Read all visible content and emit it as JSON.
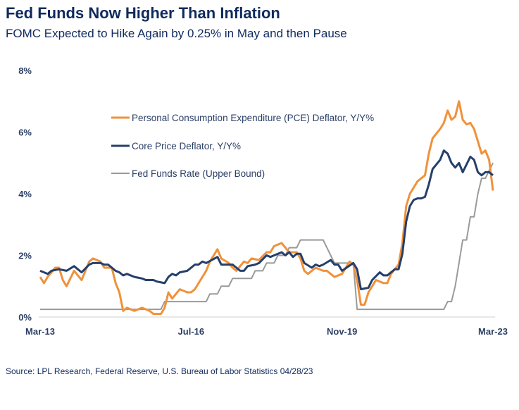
{
  "header": {
    "title": "Fed Funds Now Higher Than Inflation",
    "subtitle": "FOMC Expected to Hike Again by 0.25% in May and then Pause"
  },
  "footer": {
    "source": "Source: LPL Research, Federal Reserve, U.S. Bureau of Labor Statistics 04/28/23"
  },
  "chart_data": {
    "type": "line",
    "title": "Fed Funds Now Higher Than Inflation",
    "subtitle": "FOMC Expected to Hike Again by 0.25% in May and then Pause",
    "xlabel": "",
    "ylabel": "",
    "xlim": [
      "2013-03",
      "2023-03"
    ],
    "ylim": [
      0,
      8
    ],
    "x_ticks": [
      {
        "date": "2013-03",
        "label": "Mar-13"
      },
      {
        "date": "2016-07",
        "label": "Jul-16"
      },
      {
        "date": "2019-11",
        "label": "Nov-19"
      },
      {
        "date": "2023-03",
        "label": "Mar-23"
      }
    ],
    "y_ticks": [
      {
        "value": 0,
        "label": "0%"
      },
      {
        "value": 2,
        "label": "2%"
      },
      {
        "value": 4,
        "label": "4%"
      },
      {
        "value": 6,
        "label": "6%"
      },
      {
        "value": 8,
        "label": "8%"
      }
    ],
    "grid": false,
    "legend_position": "top-center",
    "series": [
      {
        "name": "Personal Consumption Expenditure (PCE) Deflator, Y/Y%",
        "color": "#f0913a",
        "points": [
          [
            "2013-03",
            1.3
          ],
          [
            "2013-04",
            1.1
          ],
          [
            "2013-05",
            1.3
          ],
          [
            "2013-07",
            1.6
          ],
          [
            "2013-08",
            1.6
          ],
          [
            "2013-09",
            1.2
          ],
          [
            "2013-10",
            1.0
          ],
          [
            "2013-12",
            1.5
          ],
          [
            "2014-02",
            1.2
          ],
          [
            "2014-04",
            1.8
          ],
          [
            "2014-05",
            1.9
          ],
          [
            "2014-07",
            1.8
          ],
          [
            "2014-08",
            1.6
          ],
          [
            "2014-10",
            1.6
          ],
          [
            "2014-11",
            1.1
          ],
          [
            "2014-12",
            0.8
          ],
          [
            "2015-01",
            0.2
          ],
          [
            "2015-02",
            0.3
          ],
          [
            "2015-04",
            0.2
          ],
          [
            "2015-06",
            0.3
          ],
          [
            "2015-08",
            0.2
          ],
          [
            "2015-09",
            0.1
          ],
          [
            "2015-11",
            0.1
          ],
          [
            "2015-12",
            0.3
          ],
          [
            "2016-01",
            0.8
          ],
          [
            "2016-02",
            0.6
          ],
          [
            "2016-04",
            0.9
          ],
          [
            "2016-06",
            0.8
          ],
          [
            "2016-07",
            0.8
          ],
          [
            "2016-08",
            0.9
          ],
          [
            "2016-10",
            1.3
          ],
          [
            "2016-11",
            1.5
          ],
          [
            "2016-12",
            1.8
          ],
          [
            "2017-02",
            2.2
          ],
          [
            "2017-03",
            1.9
          ],
          [
            "2017-05",
            1.75
          ],
          [
            "2017-06",
            1.6
          ],
          [
            "2017-07",
            1.5
          ],
          [
            "2017-09",
            1.8
          ],
          [
            "2017-10",
            1.75
          ],
          [
            "2017-11",
            1.9
          ],
          [
            "2018-01",
            1.85
          ],
          [
            "2018-03",
            2.1
          ],
          [
            "2018-04",
            2.1
          ],
          [
            "2018-05",
            2.3
          ],
          [
            "2018-07",
            2.4
          ],
          [
            "2018-09",
            2.1
          ],
          [
            "2018-11",
            2.1
          ],
          [
            "2018-12",
            1.9
          ],
          [
            "2019-01",
            1.5
          ],
          [
            "2019-02",
            1.4
          ],
          [
            "2019-04",
            1.6
          ],
          [
            "2019-06",
            1.5
          ],
          [
            "2019-07",
            1.5
          ],
          [
            "2019-09",
            1.3
          ],
          [
            "2019-11",
            1.4
          ],
          [
            "2020-01",
            1.8
          ],
          [
            "2020-02",
            1.7
          ],
          [
            "2020-03",
            1.2
          ],
          [
            "2020-04",
            0.4
          ],
          [
            "2020-05",
            0.4
          ],
          [
            "2020-06",
            0.8
          ],
          [
            "2020-07",
            1.0
          ],
          [
            "2020-08",
            1.2
          ],
          [
            "2020-10",
            1.1
          ],
          [
            "2020-11",
            1.1
          ],
          [
            "2020-12",
            1.4
          ],
          [
            "2021-02",
            1.7
          ],
          [
            "2021-03",
            2.4
          ],
          [
            "2021-04",
            3.6
          ],
          [
            "2021-05",
            4.0
          ],
          [
            "2021-07",
            4.4
          ],
          [
            "2021-09",
            4.6
          ],
          [
            "2021-10",
            5.3
          ],
          [
            "2021-11",
            5.8
          ],
          [
            "2022-01",
            6.1
          ],
          [
            "2022-02",
            6.3
          ],
          [
            "2022-03",
            6.7
          ],
          [
            "2022-04",
            6.4
          ],
          [
            "2022-05",
            6.5
          ],
          [
            "2022-06",
            7.0
          ],
          [
            "2022-07",
            6.4
          ],
          [
            "2022-08",
            6.25
          ],
          [
            "2022-09",
            6.3
          ],
          [
            "2022-10",
            6.1
          ],
          [
            "2022-11",
            5.7
          ],
          [
            "2022-12",
            5.3
          ],
          [
            "2023-01",
            5.4
          ],
          [
            "2023-02",
            5.1
          ],
          [
            "2023-03",
            4.1
          ]
        ]
      },
      {
        "name": "Core Price Deflator, Y/Y%",
        "color": "#253f6b",
        "points": [
          [
            "2013-03",
            1.5
          ],
          [
            "2013-05",
            1.4
          ],
          [
            "2013-06",
            1.5
          ],
          [
            "2013-08",
            1.55
          ],
          [
            "2013-10",
            1.5
          ],
          [
            "2013-12",
            1.65
          ],
          [
            "2014-02",
            1.45
          ],
          [
            "2014-04",
            1.7
          ],
          [
            "2014-05",
            1.75
          ],
          [
            "2014-07",
            1.75
          ],
          [
            "2014-08",
            1.7
          ],
          [
            "2014-09",
            1.7
          ],
          [
            "2014-11",
            1.5
          ],
          [
            "2014-12",
            1.45
          ],
          [
            "2015-01",
            1.35
          ],
          [
            "2015-02",
            1.4
          ],
          [
            "2015-04",
            1.3
          ],
          [
            "2015-06",
            1.25
          ],
          [
            "2015-07",
            1.2
          ],
          [
            "2015-09",
            1.2
          ],
          [
            "2015-10",
            1.15
          ],
          [
            "2015-12",
            1.1
          ],
          [
            "2016-01",
            1.3
          ],
          [
            "2016-02",
            1.4
          ],
          [
            "2016-03",
            1.35
          ],
          [
            "2016-04",
            1.45
          ],
          [
            "2016-06",
            1.5
          ],
          [
            "2016-08",
            1.7
          ],
          [
            "2016-09",
            1.7
          ],
          [
            "2016-10",
            1.8
          ],
          [
            "2016-11",
            1.75
          ],
          [
            "2017-02",
            1.95
          ],
          [
            "2017-03",
            1.7
          ],
          [
            "2017-06",
            1.7
          ],
          [
            "2017-08",
            1.5
          ],
          [
            "2017-09",
            1.5
          ],
          [
            "2017-10",
            1.65
          ],
          [
            "2017-12",
            1.7
          ],
          [
            "2018-01",
            1.75
          ],
          [
            "2018-03",
            2.0
          ],
          [
            "2018-04",
            1.95
          ],
          [
            "2018-05",
            2.0
          ],
          [
            "2018-07",
            2.1
          ],
          [
            "2018-08",
            2.0
          ],
          [
            "2018-09",
            2.1
          ],
          [
            "2018-10",
            1.95
          ],
          [
            "2018-11",
            2.05
          ],
          [
            "2018-12",
            2.05
          ],
          [
            "2019-01",
            1.75
          ],
          [
            "2019-03",
            1.6
          ],
          [
            "2019-04",
            1.7
          ],
          [
            "2019-05",
            1.65
          ],
          [
            "2019-06",
            1.7
          ],
          [
            "2019-08",
            1.85
          ],
          [
            "2019-09",
            1.7
          ],
          [
            "2019-10",
            1.7
          ],
          [
            "2019-11",
            1.5
          ],
          [
            "2020-02",
            1.75
          ],
          [
            "2020-03",
            1.55
          ],
          [
            "2020-04",
            0.9
          ],
          [
            "2020-06",
            0.95
          ],
          [
            "2020-07",
            1.2
          ],
          [
            "2020-09",
            1.45
          ],
          [
            "2020-10",
            1.35
          ],
          [
            "2020-11",
            1.35
          ],
          [
            "2021-01",
            1.55
          ],
          [
            "2021-02",
            1.55
          ],
          [
            "2021-03",
            2.05
          ],
          [
            "2021-04",
            3.1
          ],
          [
            "2021-05",
            3.6
          ],
          [
            "2021-06",
            3.8
          ],
          [
            "2021-07",
            3.85
          ],
          [
            "2021-08",
            3.85
          ],
          [
            "2021-09",
            3.9
          ],
          [
            "2021-10",
            4.3
          ],
          [
            "2021-11",
            4.8
          ],
          [
            "2022-01",
            5.1
          ],
          [
            "2022-02",
            5.4
          ],
          [
            "2022-03",
            5.3
          ],
          [
            "2022-04",
            5.0
          ],
          [
            "2022-05",
            4.85
          ],
          [
            "2022-06",
            5.0
          ],
          [
            "2022-07",
            4.7
          ],
          [
            "2022-09",
            5.2
          ],
          [
            "2022-10",
            5.1
          ],
          [
            "2022-11",
            4.7
          ],
          [
            "2022-12",
            4.6
          ],
          [
            "2023-01",
            4.7
          ],
          [
            "2023-02",
            4.7
          ],
          [
            "2023-03",
            4.6
          ]
        ]
      },
      {
        "name": "Fed Funds Rate (Upper Bound)",
        "color": "#9a9a9a",
        "points": [
          [
            "2013-03",
            0.25
          ],
          [
            "2015-11",
            0.25
          ],
          [
            "2015-12",
            0.5
          ],
          [
            "2016-11",
            0.5
          ],
          [
            "2016-12",
            0.75
          ],
          [
            "2017-02",
            0.75
          ],
          [
            "2017-03",
            1.0
          ],
          [
            "2017-05",
            1.0
          ],
          [
            "2017-06",
            1.25
          ],
          [
            "2017-11",
            1.25
          ],
          [
            "2017-12",
            1.5
          ],
          [
            "2018-02",
            1.5
          ],
          [
            "2018-03",
            1.75
          ],
          [
            "2018-05",
            1.75
          ],
          [
            "2018-06",
            2.0
          ],
          [
            "2018-08",
            2.0
          ],
          [
            "2018-09",
            2.25
          ],
          [
            "2018-11",
            2.25
          ],
          [
            "2018-12",
            2.5
          ],
          [
            "2019-06",
            2.5
          ],
          [
            "2019-07",
            2.25
          ],
          [
            "2019-08",
            2.0
          ],
          [
            "2019-09",
            1.75
          ],
          [
            "2020-02",
            1.75
          ],
          [
            "2020-03",
            0.25
          ],
          [
            "2022-02",
            0.25
          ],
          [
            "2022-03",
            0.5
          ],
          [
            "2022-04",
            0.5
          ],
          [
            "2022-05",
            1.0
          ],
          [
            "2022-06",
            1.75
          ],
          [
            "2022-07",
            2.5
          ],
          [
            "2022-08",
            2.5
          ],
          [
            "2022-09",
            3.25
          ],
          [
            "2022-10",
            3.25
          ],
          [
            "2022-11",
            4.0
          ],
          [
            "2022-12",
            4.5
          ],
          [
            "2023-01",
            4.5
          ],
          [
            "2023-02",
            4.75
          ],
          [
            "2023-03",
            5.0
          ]
        ]
      }
    ]
  }
}
